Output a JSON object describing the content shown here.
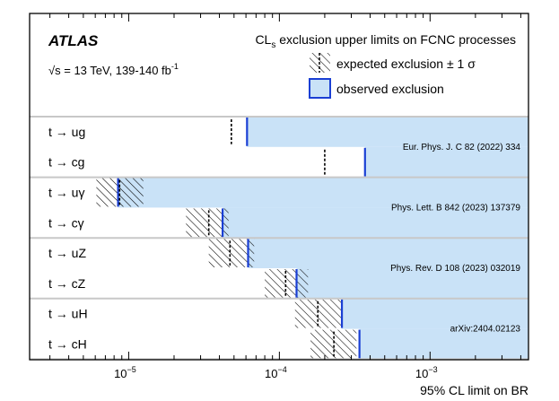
{
  "chart_data": {
    "type": "horizontal-limit-bars",
    "title_experiment": "ATLAS",
    "energy_label": "√s = 13 TeV, 139-140 fb",
    "energy_sup": "-1",
    "header_pre": "CL",
    "header_sub": "s",
    "header_post": " exclusion upper limits on FCNC processes",
    "legend": {
      "expected": "expected exclusion ± 1 σ",
      "observed": "observed exclusion"
    },
    "xscale": "log",
    "xlim": [
      2.2e-06,
      0.0045
    ],
    "xlabel": "95% CL limit on BR",
    "xticks": [
      {
        "value": 1e-05,
        "base": "10",
        "exp": "−5"
      },
      {
        "value": 0.0001,
        "base": "10",
        "exp": "−4"
      },
      {
        "value": 0.001,
        "base": "10",
        "exp": "−3"
      }
    ],
    "processes": [
      {
        "label": "t → ug",
        "expected": 4.8e-05,
        "exp_lo": 4.8e-05,
        "exp_hi": 4.8e-05,
        "observed": 6.1e-05
      },
      {
        "label": "t → cg",
        "expected": 0.0002,
        "exp_lo": 0.0002,
        "exp_hi": 0.0002,
        "observed": 0.00037
      },
      {
        "label": "t → uγ",
        "expected": 8.7e-06,
        "exp_lo": 6.1e-06,
        "exp_hi": 1.25e-05,
        "observed": 8.5e-06
      },
      {
        "label": "t → cγ",
        "expected": 3.4e-05,
        "exp_lo": 2.4e-05,
        "exp_hi": 4.6e-05,
        "observed": 4.2e-05
      },
      {
        "label": "t → uZ",
        "expected": 4.7e-05,
        "exp_lo": 3.4e-05,
        "exp_hi": 6.8e-05,
        "observed": 6.2e-05
      },
      {
        "label": "t → cZ",
        "expected": 0.00011,
        "exp_lo": 8e-05,
        "exp_hi": 0.000155,
        "observed": 0.00013
      },
      {
        "label": "t → uH",
        "expected": 0.00018,
        "exp_lo": 0.000127,
        "exp_hi": 0.000258,
        "observed": 0.00026
      },
      {
        "label": "t → cH",
        "expected": 0.00023,
        "exp_lo": 0.000161,
        "exp_hi": 0.000325,
        "observed": 0.00034
      }
    ],
    "references": [
      "Eur. Phys. J. C 82 (2022) 334",
      "Phys. Lett. B 842 (2023) 137379",
      "Phys. Rev. D 108 (2023) 032019",
      "arXiv:2404.02123"
    ],
    "colors": {
      "observed_fill": "#c9e2f7",
      "observed_line": "#1a3fd4",
      "separator": "#c8c8c8",
      "frame": "#000000"
    }
  }
}
